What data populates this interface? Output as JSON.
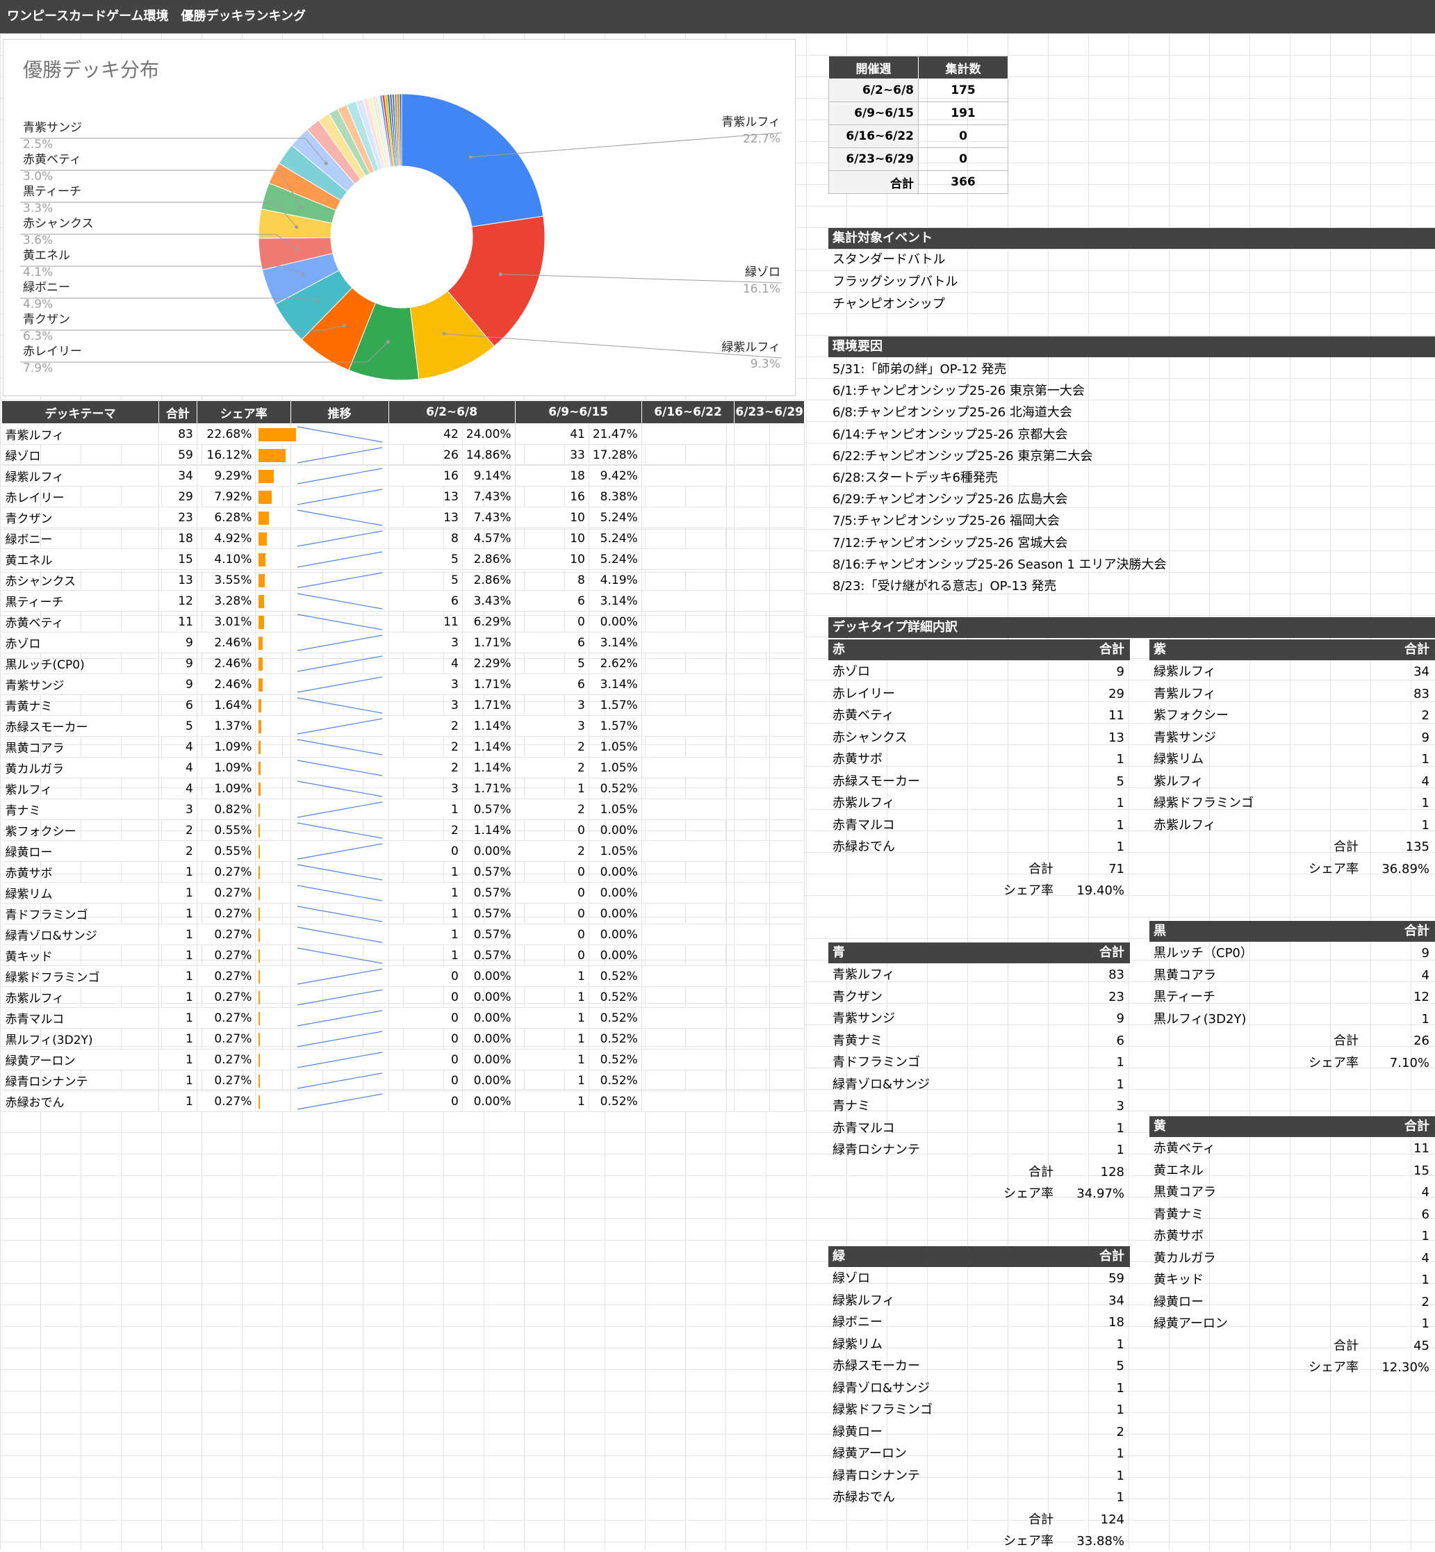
{
  "title": "ワンピースカードゲーム環境　優勝デッキランキング",
  "chart_data": {
    "type": "pie",
    "title": "優勝デッキ分布",
    "donut": true,
    "slices": [
      {
        "name": "青紫ルフィ",
        "value": 83,
        "color": "#4285f4"
      },
      {
        "name": "緑ゾロ",
        "value": 59,
        "color": "#ea4335"
      },
      {
        "name": "緑紫ルフィ",
        "value": 34,
        "color": "#fbbc04"
      },
      {
        "name": "赤レイリー",
        "value": 29,
        "color": "#34a853"
      },
      {
        "name": "青クザン",
        "value": 23,
        "color": "#ff6d01"
      },
      {
        "name": "緑ボニー",
        "value": 18,
        "color": "#46bdc6"
      },
      {
        "name": "黄エネル",
        "value": 15,
        "color": "#7baaf7"
      },
      {
        "name": "赤シャンクス",
        "value": 13,
        "color": "#f07b72"
      },
      {
        "name": "黒ティーチ",
        "value": 12,
        "color": "#fcd04f"
      },
      {
        "name": "赤黄ベティ",
        "value": 11,
        "color": "#71c287"
      },
      {
        "name": "赤ゾロ",
        "value": 9,
        "color": "#ff994d"
      },
      {
        "name": "黒ルッチ(CP0)",
        "value": 9,
        "color": "#7ed1d7"
      },
      {
        "name": "青紫サンジ",
        "value": 9,
        "color": "#b3cefb"
      },
      {
        "name": "青黄ナミ",
        "value": 6,
        "color": "#f7b4ae"
      },
      {
        "name": "赤緑スモーカー",
        "value": 5,
        "color": "#fde49b"
      },
      {
        "name": "黒黄コアラ",
        "value": 4,
        "color": "#aedcba"
      },
      {
        "name": "黄カルガラ",
        "value": 4,
        "color": "#ffc599"
      },
      {
        "name": "紫ルフィ",
        "value": 4,
        "color": "#b2e5e8"
      },
      {
        "name": "青ナミ",
        "value": 3,
        "color": "#d9e6fd"
      },
      {
        "name": "紫フォクシー",
        "value": 2,
        "color": "#fbe1df"
      },
      {
        "name": "緑黄ロー",
        "value": 2,
        "color": "#fef2cd"
      },
      {
        "name": "赤黄サボ",
        "value": 1,
        "color": "#d4eddb"
      },
      {
        "name": "緑紫リム",
        "value": 1,
        "color": "#ffe2cc"
      },
      {
        "name": "青ドフラミンゴ",
        "value": 1,
        "color": "#e1f3f4"
      },
      {
        "name": "緑青ゾロ&サンジ",
        "value": 1,
        "color": "#5e97f6"
      },
      {
        "name": "黄キッド",
        "value": 1,
        "color": "#db4437"
      },
      {
        "name": "緑紫ドフラミンゴ",
        "value": 1,
        "color": "#f4b400"
      },
      {
        "name": "赤紫ルフィ",
        "value": 1,
        "color": "#0f9d58"
      },
      {
        "name": "赤青マルコ",
        "value": 1,
        "color": "#ab47bc"
      },
      {
        "name": "黒ルフィ(3D2Y)",
        "value": 1,
        "color": "#00acc1"
      },
      {
        "name": "緑黄アーロン",
        "value": 1,
        "color": "#ff7043"
      },
      {
        "name": "緑青ロシナンテ",
        "value": 1,
        "color": "#9e9d24"
      },
      {
        "name": "赤緑おでん",
        "value": 1,
        "color": "#5c6bc0"
      }
    ],
    "labels": [
      {
        "name": "青紫ルフィ",
        "pct": "22.7%"
      },
      {
        "name": "緑ゾロ",
        "pct": "16.1%"
      },
      {
        "name": "緑紫ルフィ",
        "pct": "9.3%"
      },
      {
        "name": "赤レイリー",
        "pct": "7.9%"
      },
      {
        "name": "青クザン",
        "pct": "6.3%"
      },
      {
        "name": "緑ボニー",
        "pct": "4.9%"
      },
      {
        "name": "黄エネル",
        "pct": "4.1%"
      },
      {
        "name": "赤シャンクス",
        "pct": "3.6%"
      },
      {
        "name": "黒ティーチ",
        "pct": "3.3%"
      },
      {
        "name": "赤黄ベティ",
        "pct": "3.0%"
      },
      {
        "name": "青紫サンジ",
        "pct": "2.5%"
      }
    ]
  },
  "table": {
    "headers": [
      "デッキテーマ",
      "合計",
      "シェア率",
      "推移",
      "6/2~6/8",
      "6/9~6/15",
      "6/16~6/22",
      "6/23~6/29"
    ],
    "max_total": 83,
    "rows": [
      {
        "name": "青紫ルフィ",
        "total": "83",
        "share": "22.68%",
        "share_val": 22.68,
        "w1": "42",
        "w1p": "24.00%",
        "w2": "41",
        "w2p": "21.47%",
        "trend": [
          24.0,
          21.47
        ]
      },
      {
        "name": "緑ゾロ",
        "total": "59",
        "share": "16.12%",
        "share_val": 16.12,
        "w1": "26",
        "w1p": "14.86%",
        "w2": "33",
        "w2p": "17.28%",
        "trend": [
          14.86,
          17.28
        ]
      },
      {
        "name": "緑紫ルフィ",
        "total": "34",
        "share": "9.29%",
        "share_val": 9.29,
        "w1": "16",
        "w1p": "9.14%",
        "w2": "18",
        "w2p": "9.42%",
        "trend": [
          9.14,
          9.42
        ]
      },
      {
        "name": "赤レイリー",
        "total": "29",
        "share": "7.92%",
        "share_val": 7.92,
        "w1": "13",
        "w1p": "7.43%",
        "w2": "16",
        "w2p": "8.38%",
        "trend": [
          7.43,
          8.38
        ]
      },
      {
        "name": "青クザン",
        "total": "23",
        "share": "6.28%",
        "share_val": 6.28,
        "w1": "13",
        "w1p": "7.43%",
        "w2": "10",
        "w2p": "5.24%",
        "trend": [
          7.43,
          5.24
        ]
      },
      {
        "name": "緑ボニー",
        "total": "18",
        "share": "4.92%",
        "share_val": 4.92,
        "w1": "8",
        "w1p": "4.57%",
        "w2": "10",
        "w2p": "5.24%",
        "trend": [
          4.57,
          5.24
        ]
      },
      {
        "name": "黄エネル",
        "total": "15",
        "share": "4.10%",
        "share_val": 4.1,
        "w1": "5",
        "w1p": "2.86%",
        "w2": "10",
        "w2p": "5.24%",
        "trend": [
          2.86,
          5.24
        ]
      },
      {
        "name": "赤シャンクス",
        "total": "13",
        "share": "3.55%",
        "share_val": 3.55,
        "w1": "5",
        "w1p": "2.86%",
        "w2": "8",
        "w2p": "4.19%",
        "trend": [
          2.86,
          4.19
        ]
      },
      {
        "name": "黒ティーチ",
        "total": "12",
        "share": "3.28%",
        "share_val": 3.28,
        "w1": "6",
        "w1p": "3.43%",
        "w2": "6",
        "w2p": "3.14%",
        "trend": [
          3.43,
          3.14
        ]
      },
      {
        "name": "赤黄ベティ",
        "total": "11",
        "share": "3.01%",
        "share_val": 3.01,
        "w1": "11",
        "w1p": "6.29%",
        "w2": "0",
        "w2p": "0.00%",
        "trend": [
          6.29,
          0.0
        ]
      },
      {
        "name": "赤ゾロ",
        "total": "9",
        "share": "2.46%",
        "share_val": 2.46,
        "w1": "3",
        "w1p": "1.71%",
        "w2": "6",
        "w2p": "3.14%",
        "trend": [
          1.71,
          3.14
        ]
      },
      {
        "name": "黒ルッチ(CP0)",
        "total": "9",
        "share": "2.46%",
        "share_val": 2.46,
        "w1": "4",
        "w1p": "2.29%",
        "w2": "5",
        "w2p": "2.62%",
        "trend": [
          2.29,
          2.62
        ]
      },
      {
        "name": "青紫サンジ",
        "total": "9",
        "share": "2.46%",
        "share_val": 2.46,
        "w1": "3",
        "w1p": "1.71%",
        "w2": "6",
        "w2p": "3.14%",
        "trend": [
          1.71,
          3.14
        ]
      },
      {
        "name": "青黄ナミ",
        "total": "6",
        "share": "1.64%",
        "share_val": 1.64,
        "w1": "3",
        "w1p": "1.71%",
        "w2": "3",
        "w2p": "1.57%",
        "trend": [
          1.71,
          1.57
        ]
      },
      {
        "name": "赤緑スモーカー",
        "total": "5",
        "share": "1.37%",
        "share_val": 1.37,
        "w1": "2",
        "w1p": "1.14%",
        "w2": "3",
        "w2p": "1.57%",
        "trend": [
          1.14,
          1.57
        ]
      },
      {
        "name": "黒黄コアラ",
        "total": "4",
        "share": "1.09%",
        "share_val": 1.09,
        "w1": "2",
        "w1p": "1.14%",
        "w2": "2",
        "w2p": "1.05%",
        "trend": [
          1.14,
          1.05
        ]
      },
      {
        "name": "黄カルガラ",
        "total": "4",
        "share": "1.09%",
        "share_val": 1.09,
        "w1": "2",
        "w1p": "1.14%",
        "w2": "2",
        "w2p": "1.05%",
        "trend": [
          1.14,
          1.05
        ]
      },
      {
        "name": "紫ルフィ",
        "total": "4",
        "share": "1.09%",
        "share_val": 1.09,
        "w1": "3",
        "w1p": "1.71%",
        "w2": "1",
        "w2p": "0.52%",
        "trend": [
          1.71,
          0.52
        ]
      },
      {
        "name": "青ナミ",
        "total": "3",
        "share": "0.82%",
        "share_val": 0.82,
        "w1": "1",
        "w1p": "0.57%",
        "w2": "2",
        "w2p": "1.05%",
        "trend": [
          0.57,
          1.05
        ]
      },
      {
        "name": "紫フォクシー",
        "total": "2",
        "share": "0.55%",
        "share_val": 0.55,
        "w1": "2",
        "w1p": "1.14%",
        "w2": "0",
        "w2p": "0.00%",
        "trend": [
          1.14,
          0.0
        ]
      },
      {
        "name": "緑黄ロー",
        "total": "2",
        "share": "0.55%",
        "share_val": 0.55,
        "w1": "0",
        "w1p": "0.00%",
        "w2": "2",
        "w2p": "1.05%",
        "trend": [
          0.0,
          1.05
        ]
      },
      {
        "name": "赤黄サボ",
        "total": "1",
        "share": "0.27%",
        "share_val": 0.27,
        "w1": "1",
        "w1p": "0.57%",
        "w2": "0",
        "w2p": "0.00%",
        "trend": [
          0.57,
          0.0
        ]
      },
      {
        "name": "緑紫リム",
        "total": "1",
        "share": "0.27%",
        "share_val": 0.27,
        "w1": "1",
        "w1p": "0.57%",
        "w2": "0",
        "w2p": "0.00%",
        "trend": [
          0.57,
          0.0
        ]
      },
      {
        "name": "青ドフラミンゴ",
        "total": "1",
        "share": "0.27%",
        "share_val": 0.27,
        "w1": "1",
        "w1p": "0.57%",
        "w2": "0",
        "w2p": "0.00%",
        "trend": [
          0.57,
          0.0
        ]
      },
      {
        "name": "緑青ゾロ&サンジ",
        "total": "1",
        "share": "0.27%",
        "share_val": 0.27,
        "w1": "1",
        "w1p": "0.57%",
        "w2": "0",
        "w2p": "0.00%",
        "trend": [
          0.57,
          0.0
        ]
      },
      {
        "name": "黄キッド",
        "total": "1",
        "share": "0.27%",
        "share_val": 0.27,
        "w1": "1",
        "w1p": "0.57%",
        "w2": "0",
        "w2p": "0.00%",
        "trend": [
          0.57,
          0.0
        ]
      },
      {
        "name": "緑紫ドフラミンゴ",
        "total": "1",
        "share": "0.27%",
        "share_val": 0.27,
        "w1": "0",
        "w1p": "0.00%",
        "w2": "1",
        "w2p": "0.52%",
        "trend": [
          0.0,
          0.52
        ]
      },
      {
        "name": "赤紫ルフィ",
        "total": "1",
        "share": "0.27%",
        "share_val": 0.27,
        "w1": "0",
        "w1p": "0.00%",
        "w2": "1",
        "w2p": "0.52%",
        "trend": [
          0.0,
          0.52
        ]
      },
      {
        "name": "赤青マルコ",
        "total": "1",
        "share": "0.27%",
        "share_val": 0.27,
        "w1": "0",
        "w1p": "0.00%",
        "w2": "1",
        "w2p": "0.52%",
        "trend": [
          0.0,
          0.52
        ]
      },
      {
        "name": "黒ルフィ(3D2Y)",
        "total": "1",
        "share": "0.27%",
        "share_val": 0.27,
        "w1": "0",
        "w1p": "0.00%",
        "w2": "1",
        "w2p": "0.52%",
        "trend": [
          0.0,
          0.52
        ]
      },
      {
        "name": "緑黄アーロン",
        "total": "1",
        "share": "0.27%",
        "share_val": 0.27,
        "w1": "0",
        "w1p": "0.00%",
        "w2": "1",
        "w2p": "0.52%",
        "trend": [
          0.0,
          0.52
        ]
      },
      {
        "name": "緑青ロシナンテ",
        "total": "1",
        "share": "0.27%",
        "share_val": 0.27,
        "w1": "0",
        "w1p": "0.00%",
        "w2": "1",
        "w2p": "0.52%",
        "trend": [
          0.0,
          0.52
        ]
      },
      {
        "name": "赤緑おでん",
        "total": "1",
        "share": "0.27%",
        "share_val": 0.27,
        "w1": "0",
        "w1p": "0.00%",
        "w2": "1",
        "w2p": "0.52%",
        "trend": [
          0.0,
          0.52
        ]
      }
    ]
  },
  "weeks": {
    "headers": [
      "開催週",
      "集計数"
    ],
    "rows": [
      [
        "6/2~6/8",
        "175"
      ],
      [
        "6/9~6/15",
        "191"
      ],
      [
        "6/16~6/22",
        "0"
      ],
      [
        "6/23~6/29",
        "0"
      ],
      [
        "合計",
        "366"
      ]
    ]
  },
  "events": {
    "title": "集計対象イベント",
    "items": [
      "スタンダードバトル",
      "フラッグシップバトル",
      "チャンピオンシップ"
    ]
  },
  "factors": {
    "title": "環境要因",
    "items": [
      "5/31:「師弟の絆」OP-12 発売",
      "6/1:チャンピオンシップ25-26 東京第一大会",
      "6/8:チャンピオンシップ25-26 北海道大会",
      "6/14:チャンピオンシップ25-26 京都大会",
      "6/22:チャンピオンシップ25-26 東京第二大会",
      "6/28:スタートデッキ6種発売",
      "6/29:チャンピオンシップ25-26 広島大会",
      "7/5:チャンピオンシップ25-26 福岡大会",
      "7/12:チャンピオンシップ25-26 宮城大会",
      "8/16:チャンピオンシップ25-26 Season 1 エリア決勝大会",
      "8/23:「受け継がれる意志」OP-13 発売"
    ]
  },
  "breakdown": {
    "title": "デッキタイプ詳細内訳",
    "total_label": "合計",
    "share_label": "シェア率",
    "red": {
      "name": "赤",
      "items": [
        [
          "赤ゾロ",
          "9"
        ],
        [
          "赤レイリー",
          "29"
        ],
        [
          "赤黄ベティ",
          "11"
        ],
        [
          "赤シャンクス",
          "13"
        ],
        [
          "赤黄サボ",
          "1"
        ],
        [
          "赤緑スモーカー",
          "5"
        ],
        [
          "赤紫ルフィ",
          "1"
        ],
        [
          "赤青マルコ",
          "1"
        ],
        [
          "赤緑おでん",
          "1"
        ]
      ],
      "total": "71",
      "share": "19.40%"
    },
    "purple": {
      "name": "紫",
      "items": [
        [
          "緑紫ルフィ",
          "34"
        ],
        [
          "青紫ルフィ",
          "83"
        ],
        [
          "紫フォクシー",
          "2"
        ],
        [
          "青紫サンジ",
          "9"
        ],
        [
          "緑紫リム",
          "1"
        ],
        [
          "紫ルフィ",
          "4"
        ],
        [
          "緑紫ドフラミンゴ",
          "1"
        ],
        [
          "赤紫ルフィ",
          "1"
        ]
      ],
      "total": "135",
      "share": "36.89%"
    },
    "black": {
      "name": "黒",
      "items": [
        [
          "黒ルッチ（CP0）",
          "9"
        ],
        [
          "黒黄コアラ",
          "4"
        ],
        [
          "黒ティーチ",
          "12"
        ],
        [
          "黒ルフィ(3D2Y)",
          "1"
        ]
      ],
      "total": "26",
      "share": "7.10%"
    },
    "blue": {
      "name": "青",
      "items": [
        [
          "青紫ルフィ",
          "83"
        ],
        [
          "青クザン",
          "23"
        ],
        [
          "青紫サンジ",
          "9"
        ],
        [
          "青黄ナミ",
          "6"
        ],
        [
          "青ドフラミンゴ",
          "1"
        ],
        [
          "緑青ゾロ&サンジ",
          "1"
        ],
        [
          "青ナミ",
          "3"
        ],
        [
          "赤青マルコ",
          "1"
        ],
        [
          "緑青ロシナンテ",
          "1"
        ]
      ],
      "total": "128",
      "share": "34.97%"
    },
    "yellow": {
      "name": "黄",
      "items": [
        [
          "赤黄ベティ",
          "11"
        ],
        [
          "黄エネル",
          "15"
        ],
        [
          "黒黄コアラ",
          "4"
        ],
        [
          "青黄ナミ",
          "6"
        ],
        [
          "赤黄サボ",
          "1"
        ],
        [
          "黄カルガラ",
          "4"
        ],
        [
          "黄キッド",
          "1"
        ],
        [
          "緑黄ロー",
          "2"
        ],
        [
          "緑黄アーロン",
          "1"
        ]
      ],
      "total": "45",
      "share": "12.30%"
    },
    "green": {
      "name": "緑",
      "items": [
        [
          "緑ゾロ",
          "59"
        ],
        [
          "緑紫ルフィ",
          "34"
        ],
        [
          "緑ボニー",
          "18"
        ],
        [
          "緑紫リム",
          "1"
        ],
        [
          "赤緑スモーカー",
          "5"
        ],
        [
          "緑青ゾロ&サンジ",
          "1"
        ],
        [
          "緑紫ドフラミンゴ",
          "1"
        ],
        [
          "緑黄ロー",
          "2"
        ],
        [
          "緑黄アーロン",
          "1"
        ],
        [
          "緑青ロシナンテ",
          "1"
        ],
        [
          "赤緑おでん",
          "1"
        ]
      ],
      "total": "124",
      "share": "33.88%"
    }
  }
}
